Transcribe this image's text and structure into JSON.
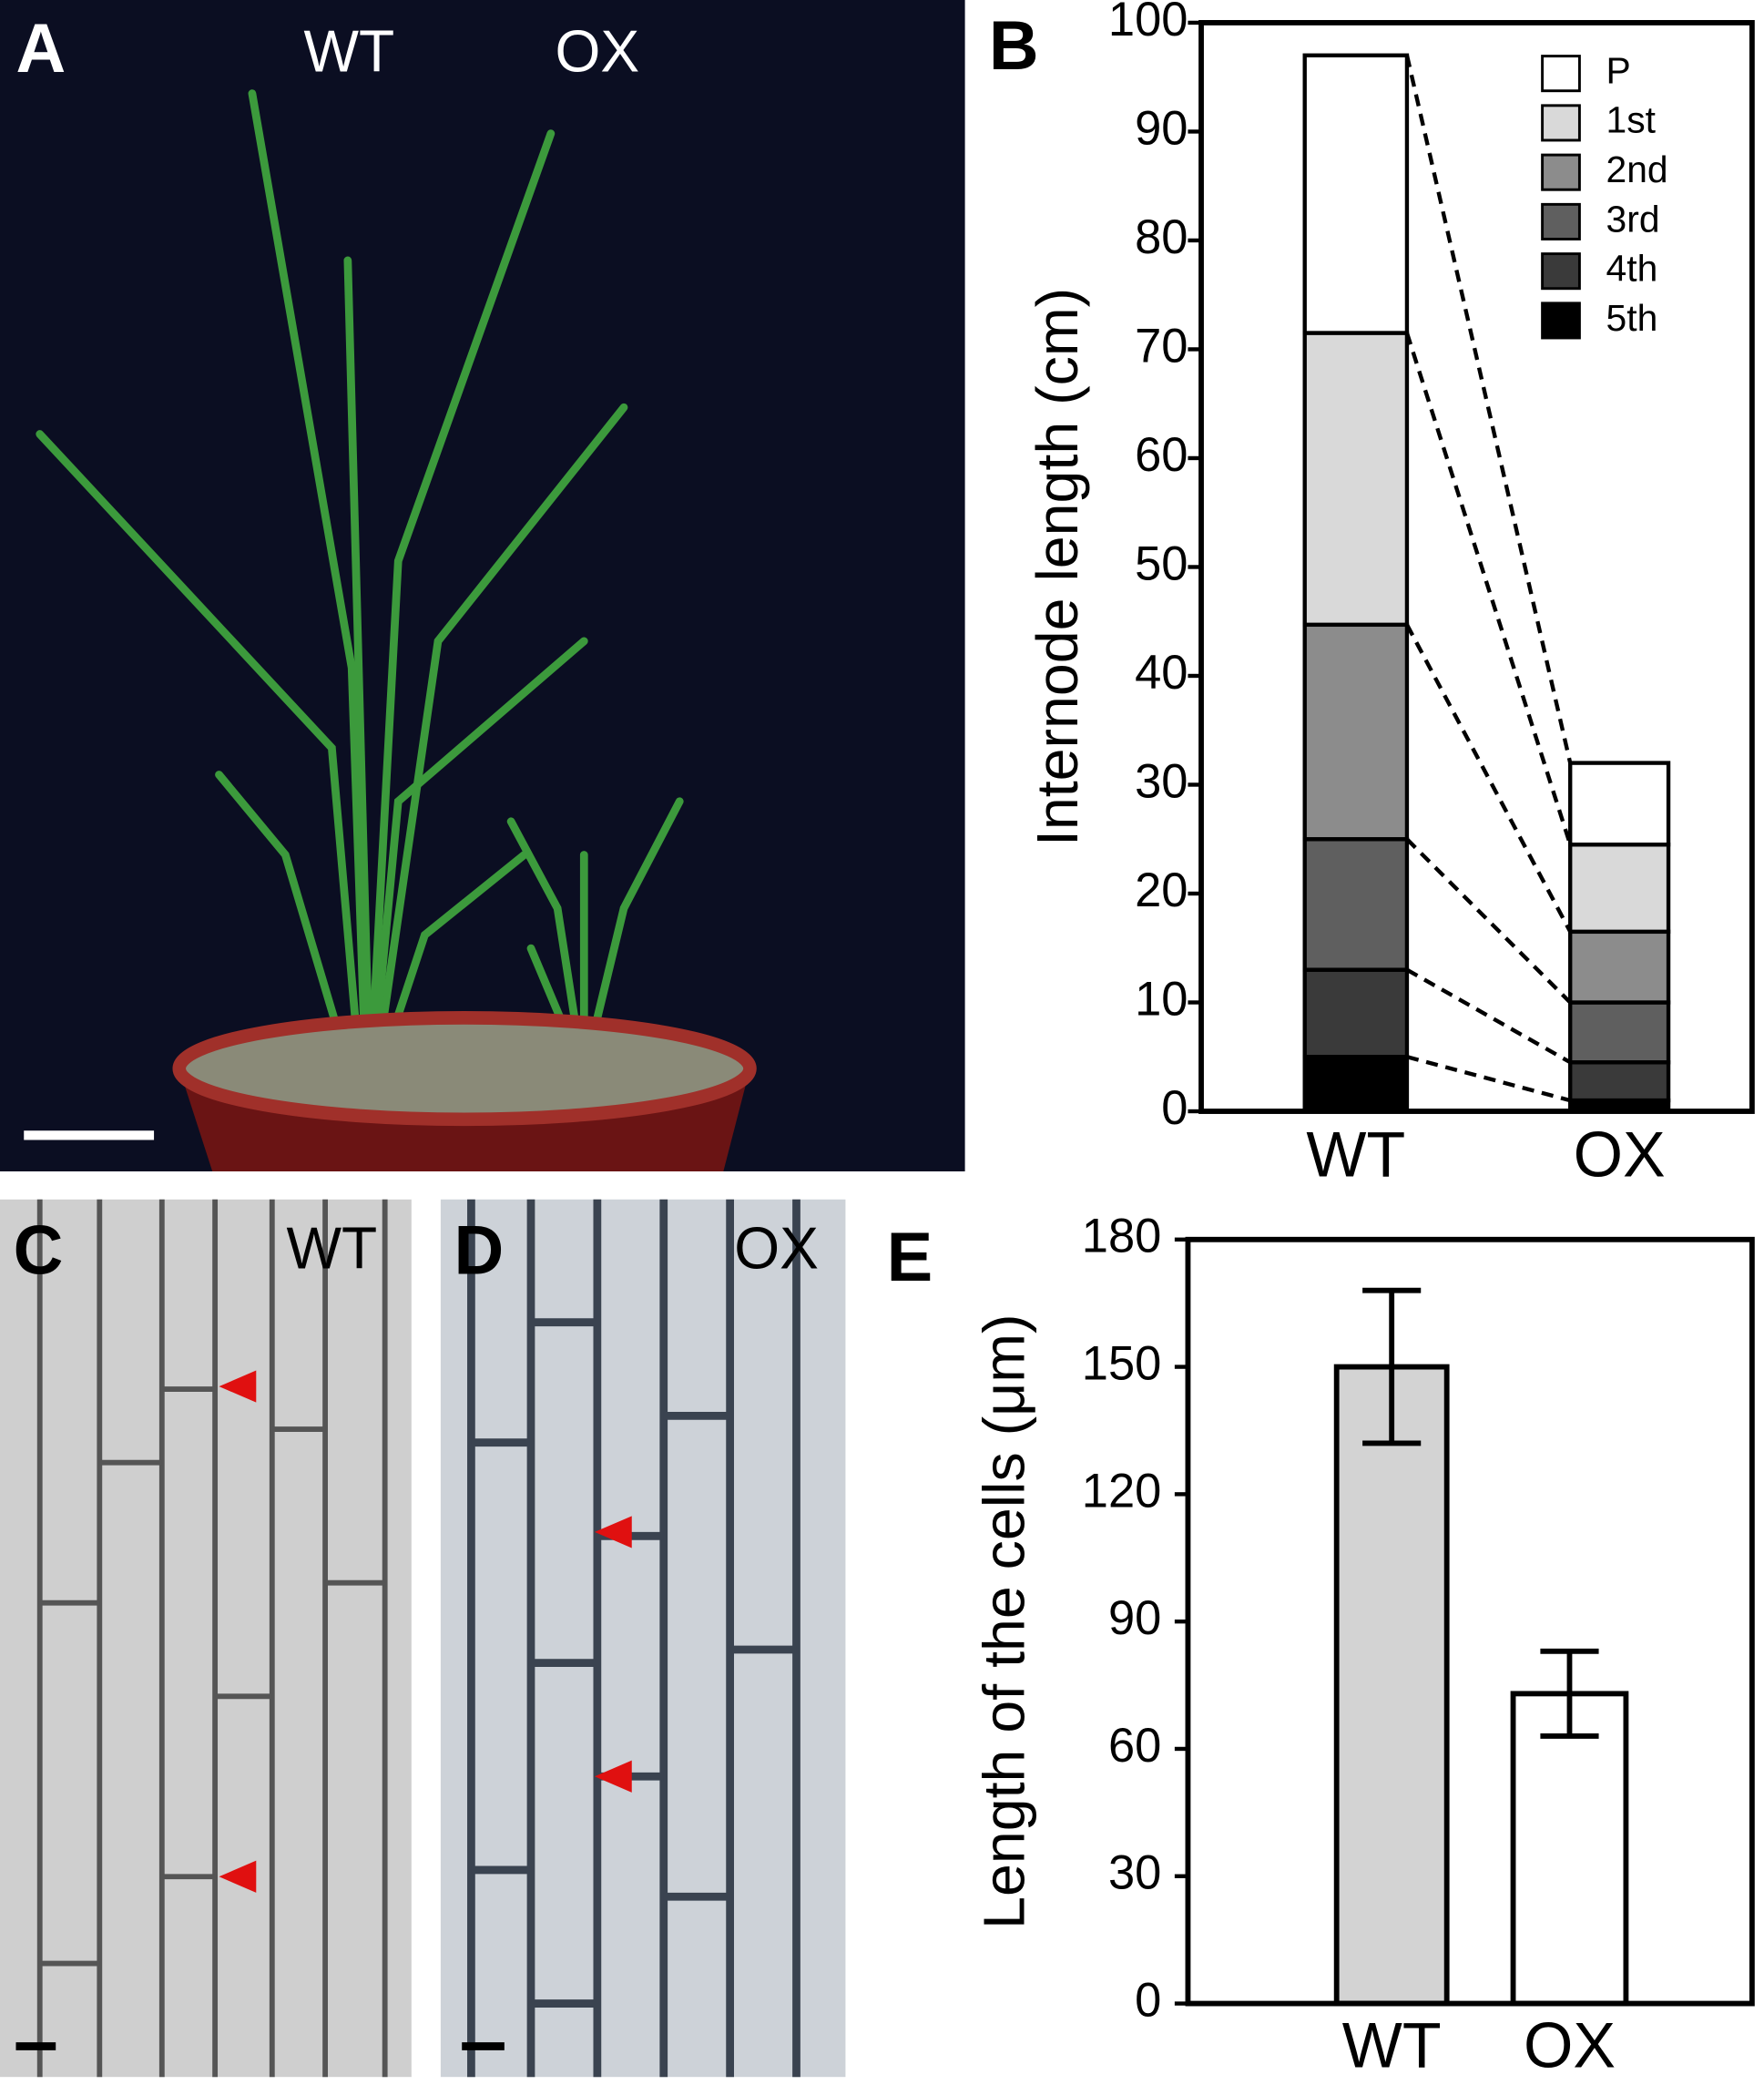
{
  "panels": [
    {
      "label": "A",
      "texts": [
        "WT",
        "OX"
      ]
    },
    {
      "label": "B"
    },
    {
      "label": "C",
      "texts": [
        "WT"
      ]
    },
    {
      "label": "D",
      "texts": [
        "OX"
      ]
    },
    {
      "label": "E"
    }
  ],
  "chart_data": [
    {
      "type": "bar",
      "stacked": true,
      "y_label": "Internode length (cm)",
      "categories": [
        "WT",
        "OX"
      ],
      "series": [
        {
          "name": "5th",
          "color": "#000000",
          "values": [
            5,
            1
          ]
        },
        {
          "name": "4th",
          "color": "#3a3a3a",
          "values": [
            8,
            3.5
          ]
        },
        {
          "name": "3rd",
          "color": "#5f5f5f",
          "values": [
            12,
            5.5
          ]
        },
        {
          "name": "2nd",
          "color": "#8c8c8c",
          "values": [
            19.7,
            6.5
          ]
        },
        {
          "name": "1st",
          "color": "#d9d9d9",
          "values": [
            26.8,
            8
          ]
        },
        {
          "name": "P",
          "color": "#ffffff",
          "values": [
            25.5,
            7.5
          ]
        }
      ],
      "ylim": [
        0,
        100
      ],
      "yticks": [
        0,
        10,
        20,
        30,
        40,
        50,
        60,
        70,
        80,
        90,
        100
      ],
      "legend": "top-right",
      "connectors": true
    },
    {
      "type": "bar",
      "y_label": "Length of the cells (μm)",
      "categories": [
        "WT",
        "OX"
      ],
      "values": [
        150,
        73
      ],
      "errors": [
        18,
        10
      ],
      "colors": [
        "#d3d3d3",
        "#ffffff"
      ],
      "ylim": [
        0,
        180
      ],
      "yticks": [
        0,
        30,
        60,
        90,
        120,
        150,
        180
      ]
    }
  ]
}
